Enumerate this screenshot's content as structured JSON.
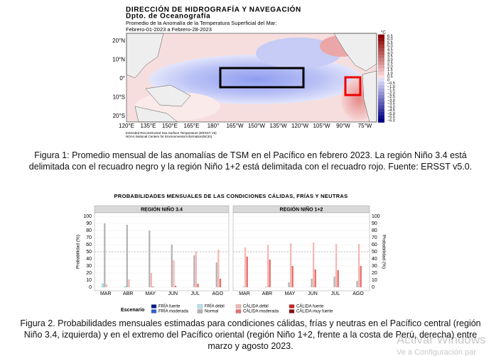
{
  "map": {
    "header": [
      "DIRECCIÓN DE HIDROGRAFÍA Y NAVEGACIÓN",
      "Dpto. de Oceanografía",
      "Promedio de la Anomalía de la Temperatura Superficial del Mar:",
      "Febrero-01-2023 a Febrero-28-2023"
    ],
    "lat_labels": [
      "20°N",
      "10°N",
      "0°",
      "10°S",
      "20°S"
    ],
    "lon_labels": [
      "120°E",
      "135°E",
      "150°E",
      "165°E",
      "180°",
      "165°W",
      "150°W",
      "135°W",
      "120°W",
      "105°W",
      "90°W",
      "75°W"
    ],
    "colorbar_unit": "°C",
    "colorbar_labels": [
      "6.5",
      "6.0",
      "5.5",
      "5.0",
      "4.5",
      "4.0",
      "3.5",
      "3.0",
      "2.5",
      "2.0",
      "1.5",
      "1.0",
      "0.5",
      "0",
      "−0.5",
      "−1.0",
      "−1.5",
      "−2.0",
      "−2.5",
      "−3.0",
      "−3.5",
      "−4.0",
      "−4.5",
      "−5.0",
      "−5.5",
      "−6.0"
    ],
    "footnote": [
      "Extended Reconstructed Sea Surface Temperature (ERSST V5)",
      "NOAA National Centers for Environmental Information(NCEI)"
    ]
  },
  "caption1": "Figura 1: Promedio mensual de las anomalías de TSM en el Pacífico en febrero 2023. La región Niño 3.4 está delimitada con el recuadro negro y la región Niño 1+2 está delimitada con el recuadro rojo. Fuente: ERSST v5.0.",
  "chart_data": {
    "type": "bar",
    "title": "PROBABILIDADES MENSUALES DE LAS CONDICIONES CÁLIDAS, FRÍAS Y NEUTRAS",
    "categories": [
      "MAR",
      "ABR",
      "MAY",
      "JUN",
      "JUL",
      "AGO"
    ],
    "ylim": [
      0,
      100
    ],
    "yticks": [
      0,
      10,
      20,
      30,
      40,
      50,
      60,
      70,
      80,
      90,
      100
    ],
    "y_label": "Probabilidad (%)",
    "reference_line": 50,
    "legend_title": "Escenario",
    "series": [
      {
        "name": "FRÍA fuerte",
        "color": "#0a1a8c"
      },
      {
        "name": "FRÍA moderada",
        "color": "#2f5fd8"
      },
      {
        "name": "FRÍA débil",
        "color": "#b3e6f2"
      },
      {
        "name": "Normal",
        "color": "#b4b4b4"
      },
      {
        "name": "CÁLIDA débil",
        "color": "#f5b8b5"
      },
      {
        "name": "CÁLIDA moderada",
        "color": "#e86f6a"
      },
      {
        "name": "CÁLIDA fuerte",
        "color": "#d21e1e"
      },
      {
        "name": "CÁLIDA muy fuerte",
        "color": "#8a0a0a"
      }
    ],
    "panels": [
      {
        "title": "REGIÓN NIÑO 3.4",
        "values": [
          [
            0,
            0,
            0,
            0,
            0,
            0
          ],
          [
            0,
            0,
            0,
            0,
            0,
            0
          ],
          [
            5,
            1,
            0,
            0,
            0,
            0
          ],
          [
            90,
            88,
            80,
            60,
            45,
            35
          ],
          [
            4,
            11,
            20,
            38,
            50,
            53
          ],
          [
            0,
            0,
            1,
            2,
            5,
            12
          ],
          [
            0,
            0,
            0,
            0,
            0,
            0
          ],
          [
            0,
            0,
            0,
            0,
            0,
            0
          ]
        ]
      },
      {
        "title": "REGIÓN NIÑO 1+2",
        "values": [
          [
            0,
            0,
            0,
            0,
            0,
            0
          ],
          [
            0,
            0,
            0,
            0,
            0,
            0
          ],
          [
            0,
            0,
            0,
            0,
            0,
            0
          ],
          [
            1,
            1,
            7,
            12,
            15,
            9
          ],
          [
            56,
            60,
            62,
            63,
            61,
            61
          ],
          [
            43,
            39,
            30,
            25,
            24,
            30
          ],
          [
            0,
            0,
            0,
            0,
            0,
            0
          ],
          [
            0,
            0,
            0,
            0,
            0,
            0
          ]
        ]
      }
    ]
  },
  "caption2": "Figura 2. Probabilidades mensuales estimadas para condiciones cálidas, frías y neutras en el Pacífico central (región Niño 3.4, izquierda) y en el extremo del Pacífico oriental (región Niño 1+2, frente a la costa de Perú, derecha) entre marzo y agosto 2023.",
  "watermark": [
    "Activar Windows",
    "Ve a Configuración par"
  ]
}
